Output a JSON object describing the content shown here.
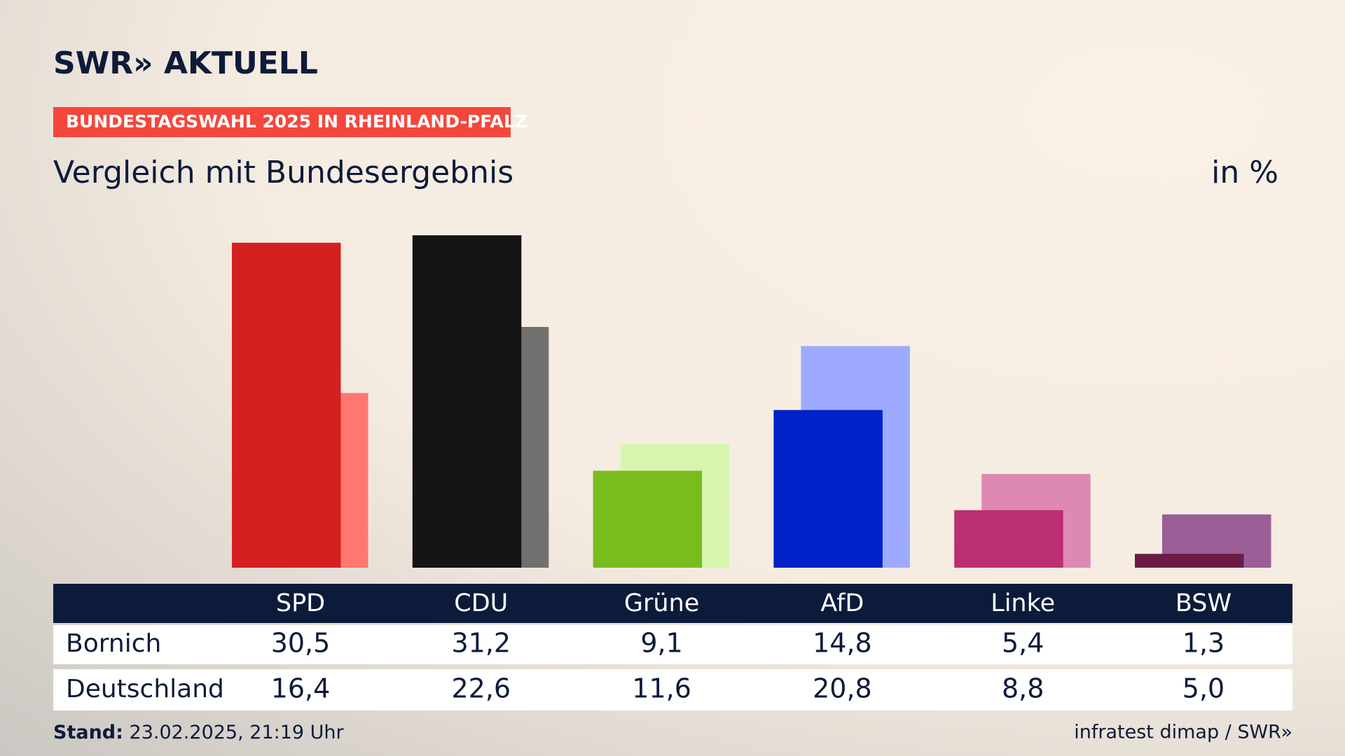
{
  "chart_data": {
    "type": "bar",
    "brand": "SWR» AKTUELL",
    "kicker": "BUNDESTAGSWAHL 2025 IN RHEINLAND-PFALZ",
    "title": "Vergleich mit Bundesergebnis",
    "unit": "in %",
    "categories": [
      "SPD",
      "CDU",
      "Grüne",
      "AfD",
      "Linke",
      "BSW"
    ],
    "series": [
      {
        "name": "Bornich",
        "colors": [
          "#d42020",
          "#141414",
          "#78bc1e",
          "#0022c8",
          "#bc2e72",
          "#6c1b44"
        ],
        "values": [
          30.5,
          31.2,
          9.1,
          14.8,
          5.4,
          1.3
        ],
        "value_labels": [
          "30,5",
          "31,2",
          "9,1",
          "14,8",
          "5,4",
          "1,3"
        ]
      },
      {
        "name": "Deutschland",
        "colors": [
          "#ff7870",
          "#72706e",
          "#d8f5b0",
          "#9eaaff",
          "#de88b4",
          "#9b5e96"
        ],
        "values": [
          16.4,
          22.6,
          11.6,
          20.8,
          8.8,
          5.0
        ],
        "value_labels": [
          "16,4",
          "22,6",
          "11,6",
          "20,8",
          "8,8",
          "5,0"
        ]
      }
    ],
    "stand_label": "Stand:",
    "stand": "23.02.2025, 21:19 Uhr",
    "source": "infratest dimap / SWR»"
  }
}
